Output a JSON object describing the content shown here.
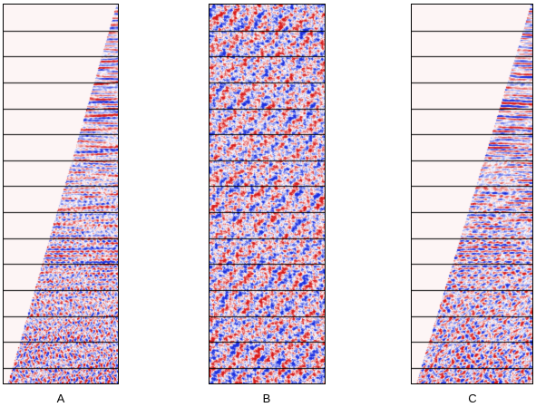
{
  "panels": [
    {
      "id": "a",
      "label": "A",
      "mute": "triangle"
    },
    {
      "id": "b",
      "label": "B",
      "mute": "none"
    },
    {
      "id": "c",
      "label": "C",
      "mute": "triangle"
    }
  ],
  "colors": {
    "positive": "#d81818",
    "negative": "#1a2ee0",
    "background": "#fdf5f5",
    "gridline": "#000000",
    "frame": "#000000"
  }
}
